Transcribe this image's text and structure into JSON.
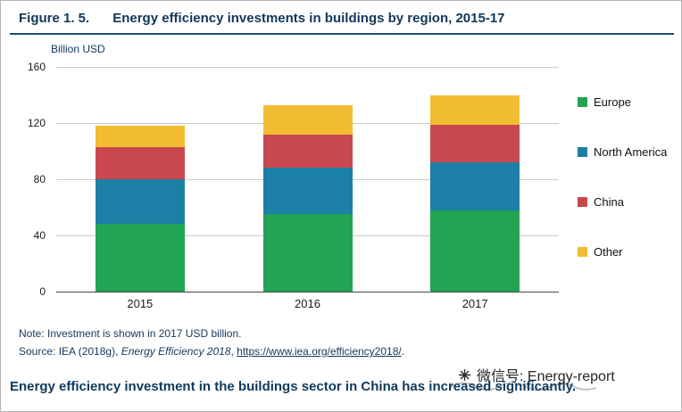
{
  "figure": {
    "label": "Figure 1. 5.",
    "title": "Energy efficiency investments in buildings by region, 2015-17",
    "axis_unit": "Billion USD",
    "note": "Note: Investment is shown in 2017 USD billion.",
    "source_prefix": "Source: IEA (2018g), ",
    "source_italic": "Energy Efficiency 2018",
    "source_sep": ", ",
    "source_link": "https://www.iea.org/efficiency2018/",
    "source_suffix": "."
  },
  "chart_data": {
    "type": "bar",
    "stacked": true,
    "title": "Energy efficiency investments in buildings by region, 2015-17",
    "xlabel": "",
    "ylabel": "Billion USD",
    "categories": [
      "2015",
      "2016",
      "2017"
    ],
    "series": [
      {
        "name": "Europe",
        "color": "#21a453",
        "values": [
          48,
          55,
          58
        ]
      },
      {
        "name": "North America",
        "color": "#1b7fa6",
        "values": [
          32,
          33,
          34
        ]
      },
      {
        "name": "China",
        "color": "#c9484f",
        "values": [
          23,
          24,
          27
        ]
      },
      {
        "name": "Other",
        "color": "#f2bc33",
        "values": [
          15,
          21,
          21
        ]
      }
    ],
    "totals": [
      118,
      133,
      140
    ],
    "ylim": [
      0,
      160
    ],
    "yticks": [
      0,
      40,
      80,
      120,
      160
    ],
    "grid": true,
    "legend_position": "right"
  },
  "footer": {
    "headline": "Energy efficiency investment in the buildings sector in China has increased significantly.",
    "watermark": "微信号: Energy-report"
  }
}
